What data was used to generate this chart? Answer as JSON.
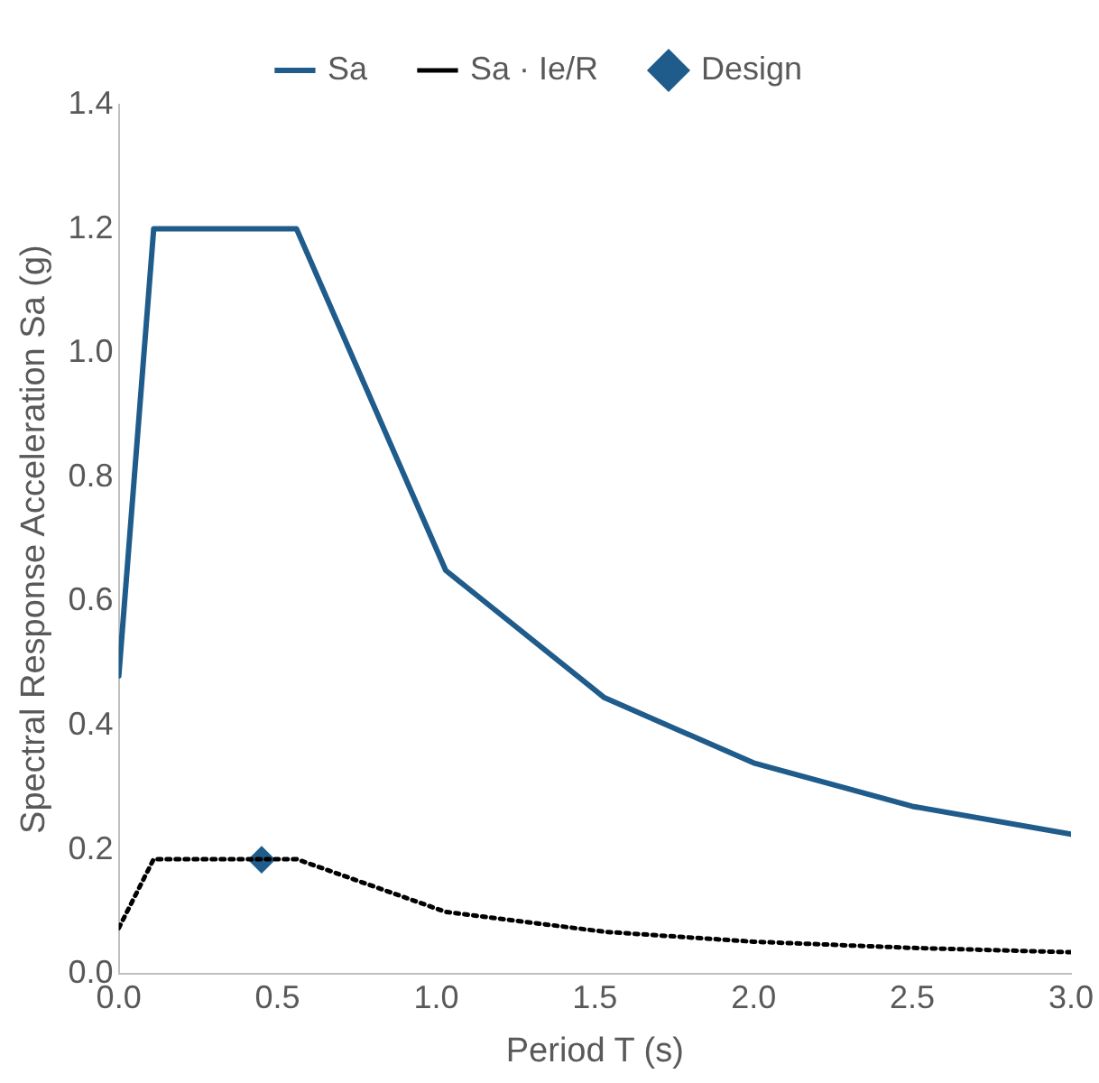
{
  "chart_data": {
    "type": "line",
    "xlabel": "Period T (s)",
    "ylabel": "Spectral Response Acceleration Sa (g)",
    "xlim": [
      0,
      3
    ],
    "xticks": [
      {
        "value": 0,
        "label": "0.0"
      },
      {
        "value": 0.5,
        "label": "0.5"
      },
      {
        "value": 1,
        "label": "1.0"
      },
      {
        "value": 1.5,
        "label": "1.5"
      },
      {
        "value": 2,
        "label": "2.0"
      },
      {
        "value": 2.5,
        "label": "2.5"
      },
      {
        "value": 3,
        "label": "3.0"
      }
    ],
    "ylim": [
      0,
      1.4
    ],
    "yticks": [
      {
        "value": 0,
        "label": "0.0"
      },
      {
        "value": 0.2,
        "label": "0.2"
      },
      {
        "value": 0.4,
        "label": "0.4"
      },
      {
        "value": 0.6,
        "label": "0.6"
      },
      {
        "value": 0.8,
        "label": "0.8"
      },
      {
        "value": 1,
        "label": "1.0"
      },
      {
        "value": 1.2,
        "label": "1.2"
      },
      {
        "value": 1.4,
        "label": "1.4"
      }
    ],
    "grid": false,
    "legend": "top",
    "series": [
      {
        "name": "Sa",
        "type": "line",
        "color": "#1f5c8b",
        "line_style": "solid",
        "marker": "none",
        "x": [
          0,
          0.11,
          0.56,
          1.03,
          1.53,
          2.0,
          2.5,
          3.0
        ],
        "values": [
          0.48,
          1.2,
          1.2,
          0.65,
          0.445,
          0.34,
          0.27,
          0.225
        ]
      },
      {
        "name": "Sa · Ie/R",
        "type": "line",
        "color": "#000000",
        "line_style": "dotted",
        "marker": "none",
        "x": [
          0,
          0.11,
          0.56,
          1.03,
          1.53,
          2.0,
          2.5,
          3.0
        ],
        "values": [
          0.074,
          0.185,
          0.185,
          0.1,
          0.068,
          0.052,
          0.042,
          0.035
        ]
      },
      {
        "name": "Design",
        "type": "scatter",
        "color": "#1f5c8b",
        "marker": "diamond",
        "x": [
          0.45
        ],
        "values": [
          0.184
        ]
      }
    ]
  }
}
